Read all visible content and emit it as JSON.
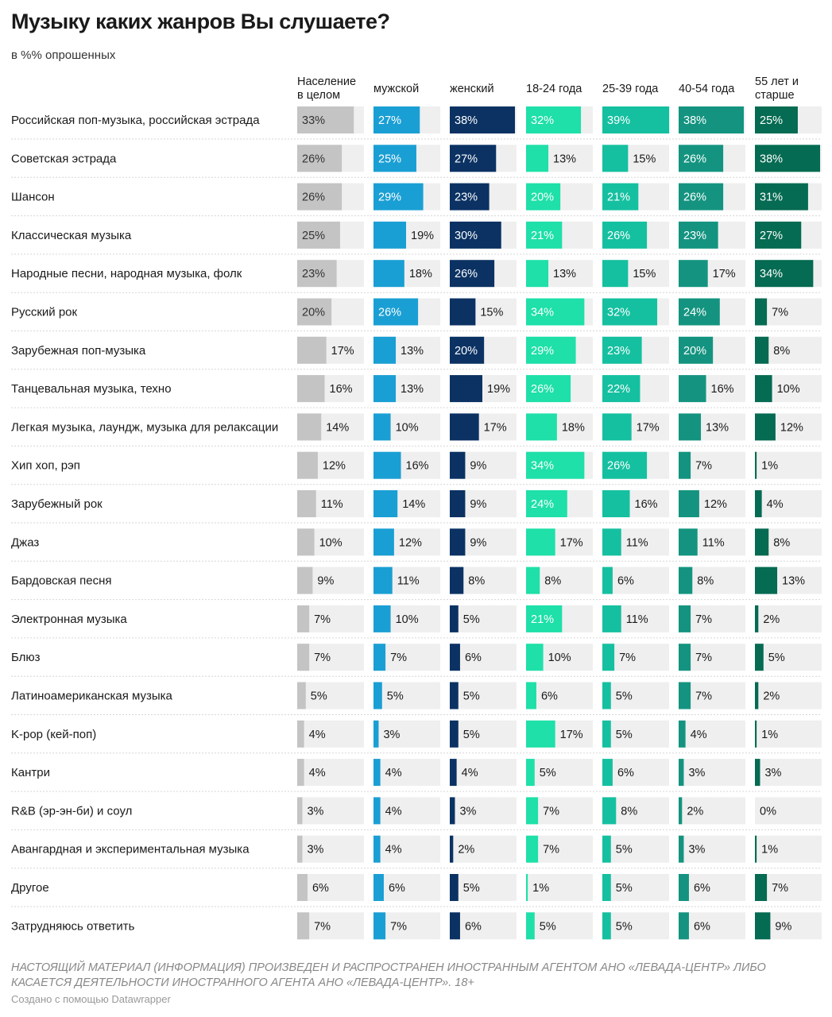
{
  "title": "Музыку каких жанров Вы слушаете?",
  "subtitle": "в %% опрошенных",
  "disclaimer": "НАСТОЯЩИЙ МАТЕРИАЛ (ИНФОРМАЦИЯ) ПРОИЗВЕДЕН И РАСПРОСТРАНЕН ИНОСТРАННЫМ АГЕНТОМ АНО «ЛЕВАДА-ЦЕНТР» ЛИБО КАСАЕТСЯ ДЕЯТЕЛЬНОСТИ ИНОСТРАННОГО АГЕНТА АНО «ЛЕВАДА-ЦЕНТР». 18+",
  "credit": "Создано с помощью Datawrapper",
  "chart_data": {
    "type": "table",
    "title": "Музыку каких жанров Вы слушаете?",
    "unit": "%",
    "scale_max": 38,
    "columns": [
      {
        "name": "Население в целом",
        "header_lines": [
          "Население",
          "в целом"
        ],
        "color": "#c4c4c4"
      },
      {
        "name": "мужской",
        "header_lines": [
          "мужской"
        ],
        "color": "#1a9fd4"
      },
      {
        "name": "женский",
        "header_lines": [
          "женский"
        ],
        "color": "#0b3263"
      },
      {
        "name": "18-24 года",
        "header_lines": [
          "18-24 года"
        ],
        "color": "#1ee0a8"
      },
      {
        "name": "25-39 года",
        "header_lines": [
          "25-39 года"
        ],
        "color": "#15c0a0"
      },
      {
        "name": "40-54 года",
        "header_lines": [
          "40-54 года"
        ],
        "color": "#149480"
      },
      {
        "name": "55 лет и старше",
        "header_lines": [
          "55 лет и",
          "старше"
        ],
        "color": "#056b52"
      }
    ],
    "rows": [
      {
        "label": "Российская поп-музыка, российская эстрада",
        "values": [
          33,
          27,
          38,
          32,
          39,
          38,
          25
        ]
      },
      {
        "label": "Советская эстрада",
        "values": [
          26,
          25,
          27,
          13,
          15,
          26,
          38
        ]
      },
      {
        "label": "Шансон",
        "values": [
          26,
          29,
          23,
          20,
          21,
          26,
          31
        ]
      },
      {
        "label": "Классическая музыка",
        "values": [
          25,
          19,
          30,
          21,
          26,
          23,
          27
        ]
      },
      {
        "label": "Народные песни, народная музыка, фолк",
        "values": [
          23,
          18,
          26,
          13,
          15,
          17,
          34
        ]
      },
      {
        "label": "Русский рок",
        "values": [
          20,
          26,
          15,
          34,
          32,
          24,
          7
        ]
      },
      {
        "label": "Зарубежная поп-музыка",
        "values": [
          17,
          13,
          20,
          29,
          23,
          20,
          8
        ]
      },
      {
        "label": "Танцевальная музыка, техно",
        "values": [
          16,
          13,
          19,
          26,
          22,
          16,
          10
        ]
      },
      {
        "label": "Легкая музыка, лаундж, музыка для релаксации",
        "values": [
          14,
          10,
          17,
          18,
          17,
          13,
          12
        ]
      },
      {
        "label": "Хип хоп, рэп",
        "values": [
          12,
          16,
          9,
          34,
          26,
          7,
          1
        ]
      },
      {
        "label": "Зарубежный рок",
        "values": [
          11,
          14,
          9,
          24,
          16,
          12,
          4
        ]
      },
      {
        "label": "Джаз",
        "values": [
          10,
          12,
          9,
          17,
          11,
          11,
          8
        ]
      },
      {
        "label": "Бардовская песня",
        "values": [
          9,
          11,
          8,
          8,
          6,
          8,
          13
        ]
      },
      {
        "label": "Электронная музыка",
        "values": [
          7,
          10,
          5,
          21,
          11,
          7,
          2
        ]
      },
      {
        "label": "Блюз",
        "values": [
          7,
          7,
          6,
          10,
          7,
          7,
          5
        ]
      },
      {
        "label": "Латиноамериканская музыка",
        "values": [
          5,
          5,
          5,
          6,
          5,
          7,
          2
        ]
      },
      {
        "label": "K-pop (кей-поп)",
        "values": [
          4,
          3,
          5,
          17,
          5,
          4,
          1
        ]
      },
      {
        "label": "Кантри",
        "values": [
          4,
          4,
          4,
          5,
          6,
          3,
          3
        ]
      },
      {
        "label": "R&B (эр-эн-би) и соул",
        "values": [
          3,
          4,
          3,
          7,
          8,
          2,
          0
        ]
      },
      {
        "label": "Авангардная и экспериментальная музыка",
        "values": [
          3,
          4,
          2,
          7,
          5,
          3,
          1
        ]
      },
      {
        "label": "Другое",
        "values": [
          6,
          6,
          5,
          1,
          5,
          6,
          7
        ]
      },
      {
        "label": "Затрудняюсь ответить",
        "values": [
          7,
          7,
          6,
          5,
          5,
          6,
          9
        ]
      }
    ]
  }
}
